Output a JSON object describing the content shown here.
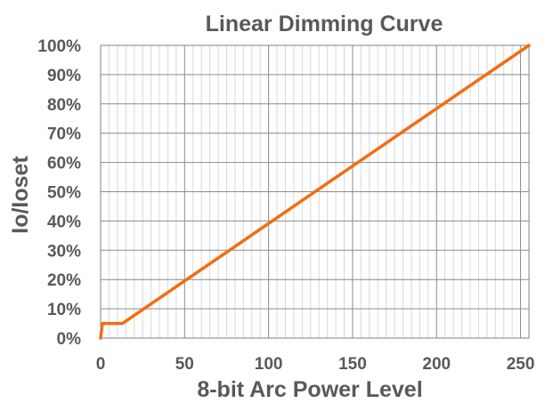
{
  "chart_data": {
    "type": "line",
    "title": "Linear Dimming Curve",
    "xlabel": "8-bit Arc Power Level",
    "ylabel": "Io/Ioset",
    "xlim": [
      0,
      255
    ],
    "ylim": [
      0,
      100
    ],
    "x_ticks": [
      0,
      50,
      100,
      150,
      200,
      250
    ],
    "x_minor_step": 5,
    "y_ticks": [
      0,
      10,
      20,
      30,
      40,
      50,
      60,
      70,
      80,
      90,
      100
    ],
    "y_tick_labels": [
      "0%",
      "10%",
      "20%",
      "30%",
      "40%",
      "50%",
      "60%",
      "70%",
      "80%",
      "90%",
      "100%"
    ],
    "grid": true,
    "legend": "none",
    "series": [
      {
        "color": "#F26D14",
        "points": [
          [
            0,
            0
          ],
          [
            1,
            5
          ],
          [
            13,
            5
          ],
          [
            255,
            100
          ]
        ]
      }
    ]
  }
}
